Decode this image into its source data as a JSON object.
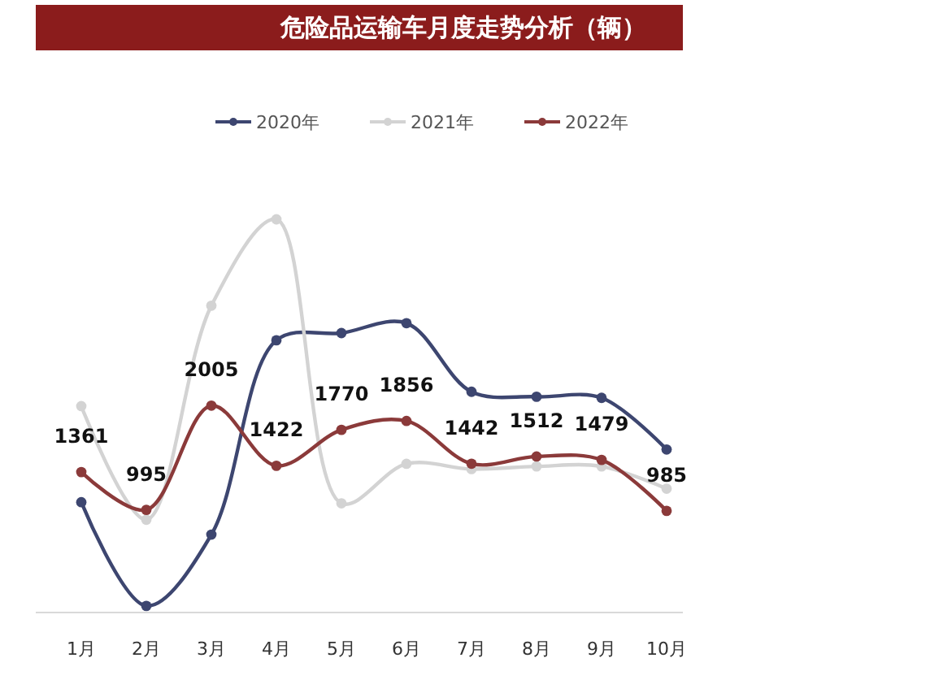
{
  "chart_data": {
    "type": "line",
    "title": "危险品运输车月度走势分析（辆）",
    "categories": [
      "1月",
      "2月",
      "3月",
      "4月",
      "5月",
      "6月",
      "7月",
      "8月",
      "9月",
      "10月"
    ],
    "series": [
      {
        "name": "2020年",
        "color": "#3d4670",
        "values": [
          1069,
          64,
          755,
          2638,
          2708,
          2804,
          2139,
          2091,
          2080,
          1580
        ]
      },
      {
        "name": "2021年",
        "color": "#d3d3d3",
        "values": [
          2000,
          899,
          2973,
          3810,
          1058,
          1441,
          1390,
          1416,
          1416,
          1200
        ]
      },
      {
        "name": "2022年",
        "color": "#8b3a3a",
        "values": [
          1361,
          995,
          2005,
          1422,
          1770,
          1856,
          1442,
          1512,
          1479,
          985
        ],
        "value_labels": [
          "1361",
          "995",
          "2005",
          "1422",
          "1770",
          "1856",
          "1442",
          "1512",
          "1479",
          "985"
        ]
      }
    ],
    "legend": "top",
    "marker": "circle",
    "line_style": "solid",
    "grid": false,
    "tick_labels": "x"
  }
}
